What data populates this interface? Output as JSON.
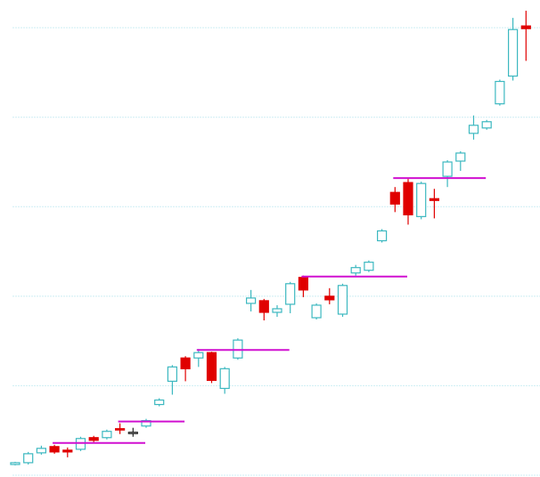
{
  "chart_data": {
    "type": "candlestick",
    "open": [
      12,
      14,
      25,
      32,
      28,
      29,
      42,
      42,
      52,
      48,
      55,
      79,
      105,
      131,
      131,
      137,
      97,
      131,
      192,
      195,
      182,
      191,
      221,
      176,
      200,
      180,
      226,
      229,
      262,
      316,
      327,
      289,
      309,
      334,
      351,
      382,
      388,
      415,
      446,
      502
    ],
    "high": [
      15,
      26,
      33,
      34,
      31,
      43,
      44,
      51,
      58,
      53,
      63,
      86,
      123,
      133,
      141,
      138,
      121,
      153,
      207,
      197,
      190,
      216,
      223,
      192,
      209,
      214,
      235,
      240,
      275,
      322,
      331,
      328,
      320,
      352,
      362,
      402,
      397,
      442,
      511,
      519
    ],
    "low": [
      11,
      12,
      23,
      24,
      20,
      27,
      37,
      40,
      46,
      43,
      53,
      77,
      90,
      105,
      121,
      103,
      91,
      129,
      183,
      173,
      177,
      181,
      199,
      174,
      191,
      177,
      223,
      227,
      260,
      294,
      280,
      286,
      287,
      322,
      340,
      375,
      386,
      413,
      441,
      463
    ],
    "close": [
      14,
      24,
      30,
      26,
      26,
      41,
      39,
      49,
      51,
      48,
      61,
      84,
      121,
      119,
      137,
      106,
      119,
      151,
      198,
      182,
      186,
      214,
      207,
      190,
      196,
      212,
      232,
      238,
      273,
      303,
      291,
      326,
      307,
      350,
      360,
      391,
      395,
      440,
      498,
      499
    ],
    "up_color": "#3cb8c0",
    "down_color": "#e00000",
    "flat_color": "#222222",
    "levels": [
      36,
      60,
      140,
      222,
      332
    ],
    "level_color": "#d010d0",
    "ylim": [
      0,
      531
    ],
    "yticks": [
      0,
      100,
      200,
      300,
      400,
      500
    ],
    "grid": true,
    "grid_color": "#cdeef4"
  }
}
